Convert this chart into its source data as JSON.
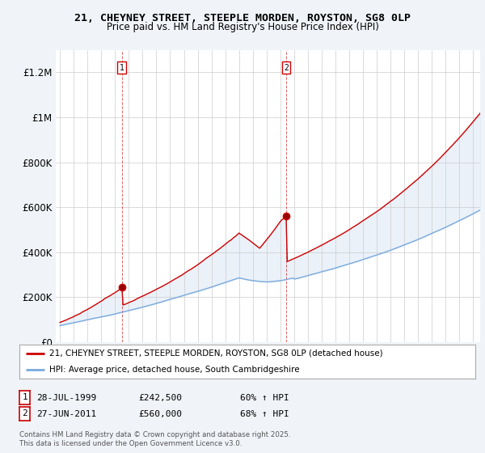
{
  "title1": "21, CHEYNEY STREET, STEEPLE MORDEN, ROYSTON, SG8 0LP",
  "title2": "Price paid vs. HM Land Registry's House Price Index (HPI)",
  "legend_line1": "21, CHEYNEY STREET, STEEPLE MORDEN, ROYSTON, SG8 0LP (detached house)",
  "legend_line2": "HPI: Average price, detached house, South Cambridgeshire",
  "marker1_date": "28-JUL-1999",
  "marker1_price": 242500,
  "marker1_hpi": "60% ↑ HPI",
  "marker2_date": "27-JUN-2011",
  "marker2_price": 560000,
  "marker2_hpi": "68% ↑ HPI",
  "footnote": "Contains HM Land Registry data © Crown copyright and database right 2025.\nThis data is licensed under the Open Government Licence v3.0.",
  "red_color": "#cc0000",
  "blue_color": "#7aaadd",
  "fill_color": "#dce9f5",
  "background_color": "#f0f4f8",
  "plot_bg_color": "#ffffff",
  "ylim": [
    0,
    1300000
  ],
  "yticks": [
    0,
    200000,
    400000,
    600000,
    800000,
    1000000,
    1200000
  ],
  "ytick_labels": [
    "£0",
    "£200K",
    "£400K",
    "£600K",
    "£800K",
    "£1M",
    "£1.2M"
  ],
  "xstart_year": 1995,
  "xend_year": 2025
}
